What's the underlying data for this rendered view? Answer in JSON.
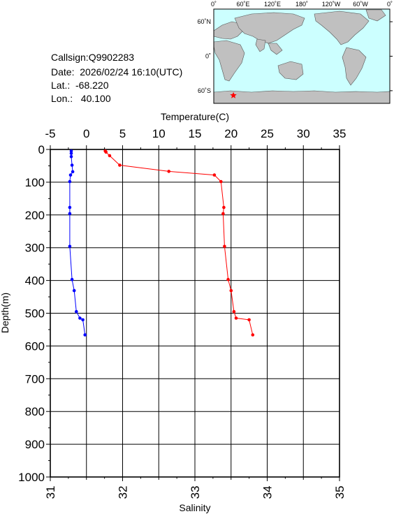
{
  "info": {
    "callsign": "Callsign:Q9902283",
    "date": "Date:  2026/02/24 16:10(UTC)",
    "lat": "Lat.:  -68.220",
    "lon": "Lon.:   40.100"
  },
  "map": {
    "lon_labels": [
      "0˚",
      "60˚E",
      "120˚E",
      "180˚",
      "120˚W",
      "60˚W",
      "0˚"
    ],
    "lat_labels": [
      "60˚N",
      "0˚",
      "60˚S"
    ],
    "ocean_color": "#ccffff",
    "land_color": "#c0c0c0",
    "marker": {
      "lat": -68.22,
      "lon": 40.1,
      "color": "#ff0000",
      "icon": "star-icon"
    }
  },
  "chart_data": {
    "type": "line",
    "top_axis": {
      "label": "Temperature(C)",
      "ticks": [
        -5,
        0,
        5,
        10,
        15,
        20,
        25,
        30,
        35
      ],
      "range": [
        -5,
        35
      ]
    },
    "bottom_axis": {
      "label": "Salinity",
      "ticks": [
        31,
        32,
        33,
        34,
        35
      ],
      "range": [
        31,
        35
      ]
    },
    "y_axis": {
      "label": "Depth(m)",
      "ticks": [
        0,
        100,
        200,
        300,
        400,
        500,
        600,
        700,
        800,
        900,
        1000
      ],
      "range": [
        0,
        1000
      ],
      "inverted": true
    },
    "grid": true,
    "series": [
      {
        "quantity": "temperature",
        "color": "#ff0000",
        "points": [
          [
            2.6,
            5
          ],
          [
            2.7,
            8
          ],
          [
            3.2,
            19
          ],
          [
            4.6,
            48
          ],
          [
            11.4,
            67
          ],
          [
            17.7,
            78
          ],
          [
            18.6,
            98
          ],
          [
            19.0,
            177
          ],
          [
            18.9,
            196
          ],
          [
            19.1,
            296
          ],
          [
            19.6,
            397
          ],
          [
            20.0,
            431
          ],
          [
            20.4,
            495
          ],
          [
            20.7,
            515
          ],
          [
            22.5,
            520
          ],
          [
            23.0,
            566
          ]
        ]
      },
      {
        "quantity": "salinity",
        "color": "#0000ff",
        "points": [
          [
            31.29,
            5
          ],
          [
            31.29,
            12
          ],
          [
            31.29,
            22
          ],
          [
            31.3,
            48
          ],
          [
            31.31,
            68
          ],
          [
            31.28,
            78
          ],
          [
            31.27,
            98
          ],
          [
            31.27,
            177
          ],
          [
            31.27,
            196
          ],
          [
            31.27,
            296
          ],
          [
            31.3,
            397
          ],
          [
            31.33,
            431
          ],
          [
            31.36,
            495
          ],
          [
            31.41,
            515
          ],
          [
            31.45,
            520
          ],
          [
            31.48,
            566
          ]
        ]
      }
    ]
  }
}
